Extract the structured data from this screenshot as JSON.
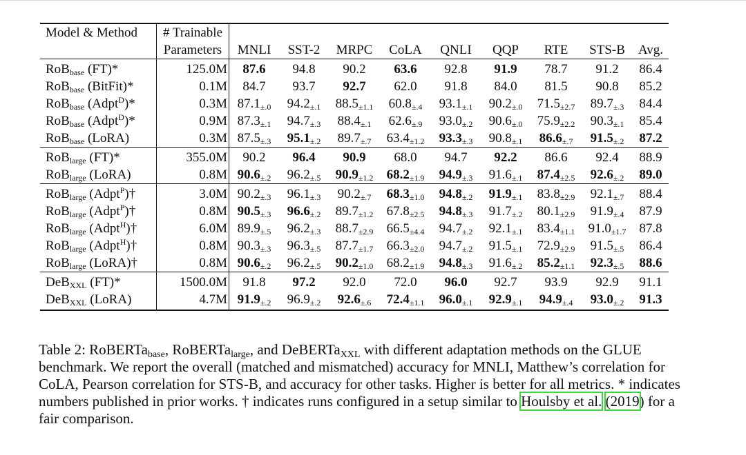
{
  "table": {
    "headers": {
      "model": "Model & Method",
      "params_line1": "# Trainable",
      "params_line2": "Parameters",
      "mnli": "MNLI",
      "sst2": "SST-2",
      "mrpc": "MRPC",
      "cola": "CoLA",
      "qnli": "QNLI",
      "qqp": "QQP",
      "rte": "RTE",
      "stsb": "STS-B",
      "avg": "Avg."
    },
    "groups": [
      {
        "rows": [
          {
            "model": {
              "base": "RoB",
              "sub": "base",
              "sup": "",
              "suffix": " (FT)*"
            },
            "params": "125.0M",
            "cells": [
              [
                "87.6",
                "",
                true
              ],
              [
                "94.8",
                "",
                false
              ],
              [
                "90.2",
                "",
                false
              ],
              [
                "63.6",
                "",
                true
              ],
              [
                "92.8",
                "",
                false
              ],
              [
                "91.9",
                "",
                true
              ],
              [
                "78.7",
                "",
                false
              ],
              [
                "91.2",
                "",
                false
              ]
            ],
            "avg": [
              "86.4",
              false
            ]
          },
          {
            "model": {
              "base": "RoB",
              "sub": "base",
              "sup": "",
              "suffix": " (BitFit)*"
            },
            "params": "0.1M",
            "cells": [
              [
                "84.7",
                "",
                false
              ],
              [
                "93.7",
                "",
                false
              ],
              [
                "92.7",
                "",
                true
              ],
              [
                "62.0",
                "",
                false
              ],
              [
                "91.8",
                "",
                false
              ],
              [
                "84.0",
                "",
                false
              ],
              [
                "81.5",
                "",
                false
              ],
              [
                "90.8",
                "",
                false
              ]
            ],
            "avg": [
              "85.2",
              false
            ]
          },
          {
            "model": {
              "base": "RoB",
              "sub": "base",
              "pre": " (Adpt",
              "sup": "D",
              "suffix": ")*"
            },
            "params": "0.3M",
            "cells": [
              [
                "87.1",
                "±.0",
                false
              ],
              [
                "94.2",
                "±.1",
                false
              ],
              [
                "88.5",
                "±1.1",
                false
              ],
              [
                "60.8",
                "±.4",
                false
              ],
              [
                "93.1",
                "±.1",
                false
              ],
              [
                "90.2",
                "±.0",
                false
              ],
              [
                "71.5",
                "±2.7",
                false
              ],
              [
                "89.7",
                "±.3",
                false
              ]
            ],
            "avg": [
              "84.4",
              false
            ]
          },
          {
            "model": {
              "base": "RoB",
              "sub": "base",
              "pre": " (Adpt",
              "sup": "D",
              "suffix": ")*"
            },
            "params": "0.9M",
            "cells": [
              [
                "87.3",
                "±.1",
                false
              ],
              [
                "94.7",
                "±.3",
                false
              ],
              [
                "88.4",
                "±.1",
                false
              ],
              [
                "62.6",
                "±.9",
                false
              ],
              [
                "93.0",
                "±.2",
                false
              ],
              [
                "90.6",
                "±.0",
                false
              ],
              [
                "75.9",
                "±2.2",
                false
              ],
              [
                "90.3",
                "±.1",
                false
              ]
            ],
            "avg": [
              "85.4",
              false
            ]
          },
          {
            "model": {
              "base": "RoB",
              "sub": "base",
              "sup": "",
              "suffix": " (LoRA)"
            },
            "params": "0.3M",
            "cells": [
              [
                "87.5",
                "±.3",
                false
              ],
              [
                "95.1",
                "±.2",
                true
              ],
              [
                "89.7",
                "±.7",
                false
              ],
              [
                "63.4",
                "±1.2",
                false
              ],
              [
                "93.3",
                "±.3",
                true
              ],
              [
                "90.8",
                "±.1",
                false
              ],
              [
                "86.6",
                "±.7",
                true
              ],
              [
                "91.5",
                "±.2",
                true
              ]
            ],
            "avg": [
              "87.2",
              true
            ]
          }
        ]
      },
      {
        "rows": [
          {
            "model": {
              "base": "RoB",
              "sub": "large",
              "sup": "",
              "suffix": " (FT)*"
            },
            "params": "355.0M",
            "cells": [
              [
                "90.2",
                "",
                false
              ],
              [
                "96.4",
                "",
                true
              ],
              [
                "90.9",
                "",
                true
              ],
              [
                "68.0",
                "",
                false
              ],
              [
                "94.7",
                "",
                false
              ],
              [
                "92.2",
                "",
                true
              ],
              [
                "86.6",
                "",
                false
              ],
              [
                "92.4",
                "",
                false
              ]
            ],
            "avg": [
              "88.9",
              false
            ]
          },
          {
            "model": {
              "base": "RoB",
              "sub": "large",
              "sup": "",
              "suffix": " (LoRA)"
            },
            "params": "0.8M",
            "cells": [
              [
                "90.6",
                "±.2",
                true
              ],
              [
                "96.2",
                "±.5",
                false
              ],
              [
                "90.9",
                "±1.2",
                true
              ],
              [
                "68.2",
                "±1.9",
                true
              ],
              [
                "94.9",
                "±.3",
                true
              ],
              [
                "91.6",
                "±.1",
                false
              ],
              [
                "87.4",
                "±2.5",
                true
              ],
              [
                "92.6",
                "±.2",
                true
              ]
            ],
            "avg": [
              "89.0",
              true
            ]
          }
        ]
      },
      {
        "rows": [
          {
            "model": {
              "base": "RoB",
              "sub": "large",
              "pre": " (Adpt",
              "sup": "P",
              "suffix": ")†"
            },
            "params": "3.0M",
            "cells": [
              [
                "90.2",
                "±.3",
                false
              ],
              [
                "96.1",
                "±.3",
                false
              ],
              [
                "90.2",
                "±.7",
                false
              ],
              [
                "68.3",
                "±1.0",
                true
              ],
              [
                "94.8",
                "±.2",
                true
              ],
              [
                "91.9",
                "±.1",
                true
              ],
              [
                "83.8",
                "±2.9",
                false
              ],
              [
                "92.1",
                "±.7",
                false
              ]
            ],
            "avg": [
              "88.4",
              false
            ]
          },
          {
            "model": {
              "base": "RoB",
              "sub": "large",
              "pre": " (Adpt",
              "sup": "P",
              "suffix": ")†"
            },
            "params": "0.8M",
            "cells": [
              [
                "90.5",
                "±.3",
                true
              ],
              [
                "96.6",
                "±.2",
                true
              ],
              [
                "89.7",
                "±1.2",
                false
              ],
              [
                "67.8",
                "±2.5",
                false
              ],
              [
                "94.8",
                "±.3",
                true
              ],
              [
                "91.7",
                "±.2",
                false
              ],
              [
                "80.1",
                "±2.9",
                false
              ],
              [
                "91.9",
                "±.4",
                false
              ]
            ],
            "avg": [
              "87.9",
              false
            ]
          },
          {
            "model": {
              "base": "RoB",
              "sub": "large",
              "pre": " (Adpt",
              "sup": "H",
              "suffix": ")†"
            },
            "params": "6.0M",
            "cells": [
              [
                "89.9",
                "±.5",
                false
              ],
              [
                "96.2",
                "±.3",
                false
              ],
              [
                "88.7",
                "±2.9",
                false
              ],
              [
                "66.5",
                "±4.4",
                false
              ],
              [
                "94.7",
                "±.2",
                false
              ],
              [
                "92.1",
                "±.1",
                false
              ],
              [
                "83.4",
                "±1.1",
                false
              ],
              [
                "91.0",
                "±1.7",
                false
              ]
            ],
            "avg": [
              "87.8",
              false
            ]
          },
          {
            "model": {
              "base": "RoB",
              "sub": "large",
              "pre": " (Adpt",
              "sup": "H",
              "suffix": ")†"
            },
            "params": "0.8M",
            "cells": [
              [
                "90.3",
                "±.3",
                false
              ],
              [
                "96.3",
                "±.5",
                false
              ],
              [
                "87.7",
                "±1.7",
                false
              ],
              [
                "66.3",
                "±2.0",
                false
              ],
              [
                "94.7",
                "±.2",
                false
              ],
              [
                "91.5",
                "±.1",
                false
              ],
              [
                "72.9",
                "±2.9",
                false
              ],
              [
                "91.5",
                "±.5",
                false
              ]
            ],
            "avg": [
              "86.4",
              false
            ]
          },
          {
            "model": {
              "base": "RoB",
              "sub": "large",
              "sup": "",
              "suffix": " (LoRA)†"
            },
            "params": "0.8M",
            "cells": [
              [
                "90.6",
                "±.2",
                true
              ],
              [
                "96.2",
                "±.5",
                false
              ],
              [
                "90.2",
                "±1.0",
                true
              ],
              [
                "68.2",
                "±1.9",
                false
              ],
              [
                "94.8",
                "±.3",
                true
              ],
              [
                "91.6",
                "±.2",
                false
              ],
              [
                "85.2",
                "±1.1",
                true
              ],
              [
                "92.3",
                "±.5",
                true
              ]
            ],
            "avg": [
              "88.6",
              true
            ]
          }
        ]
      },
      {
        "rows": [
          {
            "model": {
              "base": "DeB",
              "sub": "XXL",
              "sup": "",
              "suffix": " (FT)*"
            },
            "params": "1500.0M",
            "cells": [
              [
                "91.8",
                "",
                false
              ],
              [
                "97.2",
                "",
                true
              ],
              [
                "92.0",
                "",
                false
              ],
              [
                "72.0",
                "",
                false
              ],
              [
                "96.0",
                "",
                true
              ],
              [
                "92.7",
                "",
                false
              ],
              [
                "93.9",
                "",
                false
              ],
              [
                "92.9",
                "",
                false
              ]
            ],
            "avg": [
              "91.1",
              false
            ]
          },
          {
            "model": {
              "base": "DeB",
              "sub": "XXL",
              "sup": "",
              "suffix": " (LoRA)"
            },
            "params": "4.7M",
            "cells": [
              [
                "91.9",
                "±.2",
                true
              ],
              [
                "96.9",
                "±.2",
                false
              ],
              [
                "92.6",
                "±.6",
                true
              ],
              [
                "72.4",
                "±1.1",
                true
              ],
              [
                "96.0",
                "±.1",
                true
              ],
              [
                "92.9",
                "±.1",
                true
              ],
              [
                "94.9",
                "±.4",
                true
              ],
              [
                "93.0",
                "±.2",
                true
              ]
            ],
            "avg": [
              "91.3",
              true
            ]
          }
        ]
      }
    ]
  },
  "caption": {
    "t1": "Table 2: RoBERTa",
    "s1": "base",
    "t2": ", RoBERTa",
    "s2": "large",
    "t3": ", and DeBERTa",
    "s3": "XXL",
    "t4": " with different adaptation methods on the GLUE benchmark. We report the overall (matched and mismatched) accuracy for MNLI, Matthew’s correlation for CoLA, Pearson correlation for STS-B, and accuracy for other tasks. Higher is better for all metrics. * indicates numbers published in prior works. † indicates runs configured in a setup similar to ",
    "cite_author": "Houlsby et al.",
    "t5": " ",
    "cite_year_open": "(",
    "cite_year": "2019",
    "cite_year_close": ")",
    "t6": " for a fair comparison."
  },
  "colors": {
    "text": "#111111",
    "citation_box": "#3bd63b",
    "top_rule": "#d8d8d8"
  }
}
